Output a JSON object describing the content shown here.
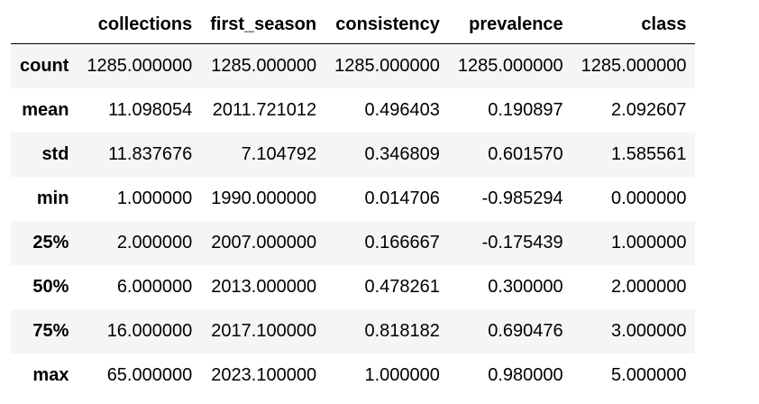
{
  "table": {
    "index_header": "",
    "columns": [
      "collections",
      "first_season",
      "consistency",
      "prevalence",
      "class"
    ],
    "rows": [
      {
        "label": "count",
        "values": [
          "1285.000000",
          "1285.000000",
          "1285.000000",
          "1285.000000",
          "1285.000000"
        ]
      },
      {
        "label": "mean",
        "values": [
          "11.098054",
          "2011.721012",
          "0.496403",
          "0.190897",
          "2.092607"
        ]
      },
      {
        "label": "std",
        "values": [
          "11.837676",
          "7.104792",
          "0.346809",
          "0.601570",
          "1.585561"
        ]
      },
      {
        "label": "min",
        "values": [
          "1.000000",
          "1990.000000",
          "0.014706",
          "-0.985294",
          "0.000000"
        ]
      },
      {
        "label": "25%",
        "values": [
          "2.000000",
          "2007.000000",
          "0.166667",
          "-0.175439",
          "1.000000"
        ]
      },
      {
        "label": "50%",
        "values": [
          "6.000000",
          "2013.000000",
          "0.478261",
          "0.300000",
          "2.000000"
        ]
      },
      {
        "label": "75%",
        "values": [
          "16.000000",
          "2017.100000",
          "0.818182",
          "0.690476",
          "3.000000"
        ]
      },
      {
        "label": "max",
        "values": [
          "65.000000",
          "2023.100000",
          "1.000000",
          "0.980000",
          "5.000000"
        ]
      }
    ]
  }
}
